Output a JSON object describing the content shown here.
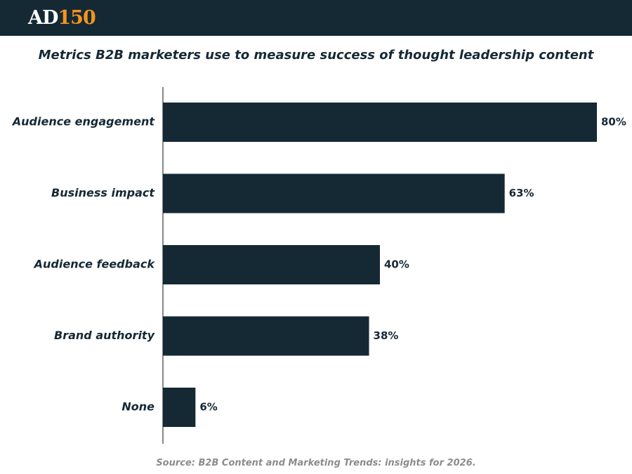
{
  "brand": {
    "logo_text_a": "AD",
    "logo_text_b": "150",
    "header_color": "#152935",
    "accent_color": "#f7941d"
  },
  "chart_data": {
    "type": "bar",
    "orientation": "horizontal",
    "title": "Metrics B2B marketers use to measure success of thought leadership content",
    "categories": [
      "Audience engagement",
      "Business impact",
      "Audience feedback",
      "Brand authority",
      "None"
    ],
    "values": [
      80,
      63,
      40,
      38,
      6
    ],
    "value_labels": [
      "80%",
      "63%",
      "40%",
      "38%",
      "6%"
    ],
    "xlim": [
      0,
      100
    ],
    "xlabel": "",
    "ylabel": "",
    "grid": false,
    "bar_color": "#152935"
  },
  "source": "Source: B2B Content and Marketing Trends: insights for 2026."
}
